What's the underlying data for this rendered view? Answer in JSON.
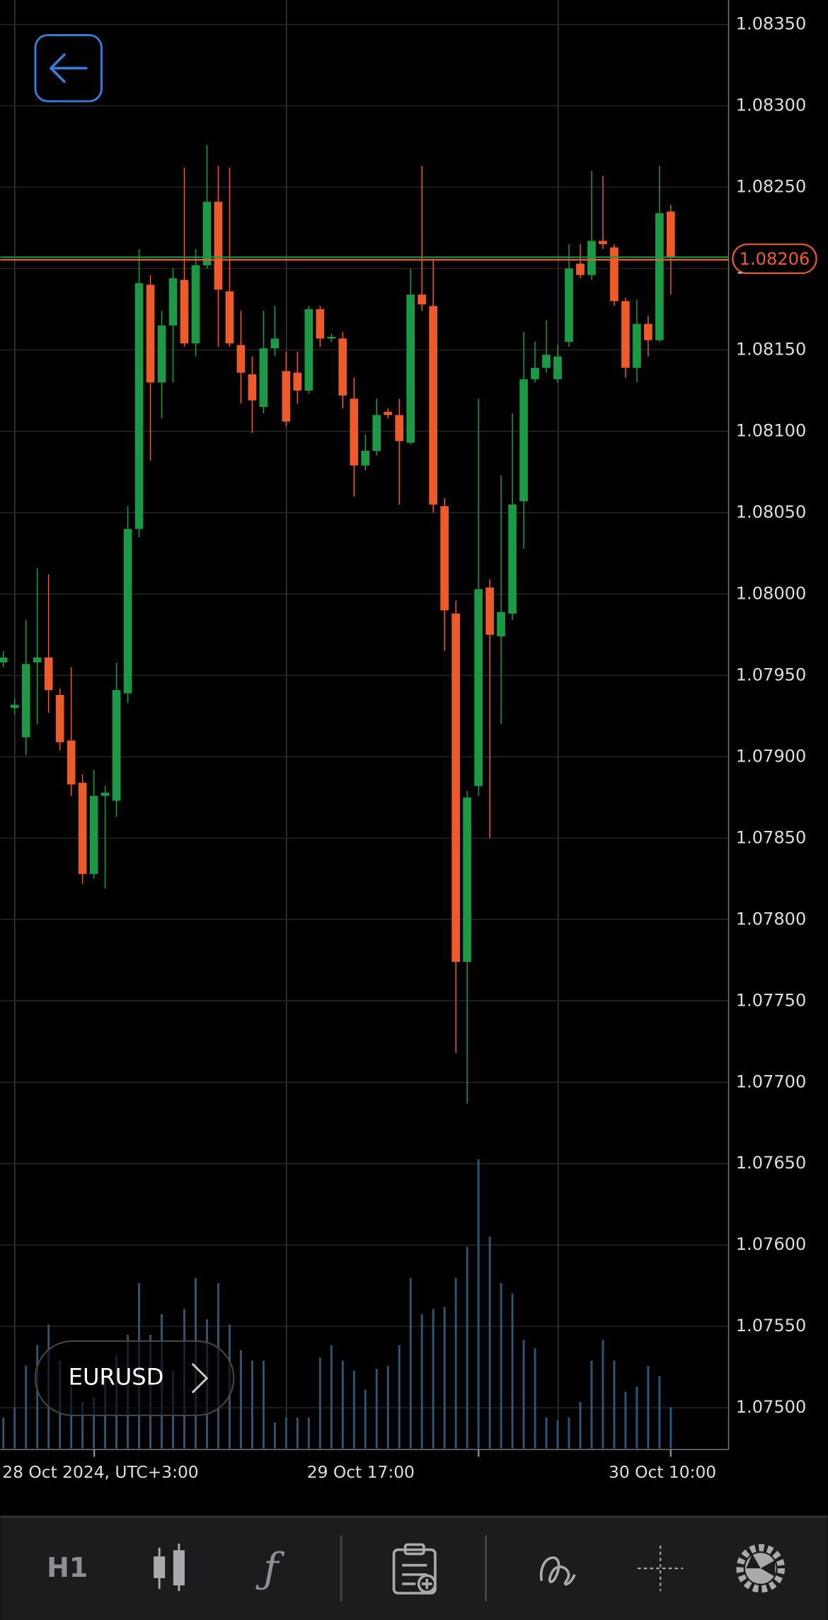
{
  "chart_data": {
    "type": "candlestick",
    "symbol": "EURUSD",
    "timeframe": "H1",
    "current_price": {
      "value": 1.08206,
      "label": "1.08206"
    },
    "x_labels": [
      "28 Oct 2024, UTC+3:00",
      "29 Oct 17:00",
      "30 Oct 10:00"
    ],
    "ylim": [
      1.07475,
      1.08365
    ],
    "yticks": [
      {
        "value": 1.0835,
        "label": "1.08350"
      },
      {
        "value": 1.083,
        "label": "1.08300"
      },
      {
        "value": 1.0825,
        "label": "1.08250"
      },
      {
        "value": 1.082,
        "label": "1.08200"
      },
      {
        "value": 1.0815,
        "label": "1.08150"
      },
      {
        "value": 1.081,
        "label": "1.08100"
      },
      {
        "value": 1.0805,
        "label": "1.08050"
      },
      {
        "value": 1.08,
        "label": "1.08000"
      },
      {
        "value": 1.0795,
        "label": "1.07950"
      },
      {
        "value": 1.079,
        "label": "1.07900"
      },
      {
        "value": 1.0785,
        "label": "1.07850"
      },
      {
        "value": 1.078,
        "label": "1.07800"
      },
      {
        "value": 1.0775,
        "label": "1.07750"
      },
      {
        "value": 1.077,
        "label": "1.07700"
      },
      {
        "value": 1.0765,
        "label": "1.07650"
      },
      {
        "value": 1.076,
        "label": "1.07600"
      },
      {
        "value": 1.0755,
        "label": "1.07550"
      },
      {
        "value": 1.075,
        "label": "1.07500"
      }
    ],
    "grid": true,
    "colors": {
      "up": "#1a9a45",
      "down": "#f05a28",
      "volume": "#2b5878"
    },
    "open": [
      1.07958,
      1.0793,
      1.07912,
      1.07958,
      1.07961,
      1.07938,
      1.0791,
      1.07884,
      1.07828,
      1.07876,
      1.07873,
      1.07939,
      1.0804,
      1.0819,
      1.0813,
      1.08165,
      1.08193,
      1.08154,
      1.08202,
      1.08241,
      1.08186,
      1.08153,
      1.08135,
      1.08115,
      1.08151,
      1.08137,
      1.08136,
      1.08125,
      1.08175,
      1.08157,
      1.08157,
      1.0812,
      1.08079,
      1.08088,
      1.08112,
      1.0811,
      1.08093,
      1.08184,
      1.08177,
      1.08054,
      1.07988,
      1.07774,
      1.07882,
      1.08004,
      1.07974,
      1.07988,
      1.08057,
      1.08132,
      1.08139,
      1.08132,
      1.08155,
      1.08203,
      1.08196,
      1.08217,
      1.08213,
      1.0818,
      1.08139,
      1.08166,
      1.08156,
      1.08235
    ],
    "high": [
      1.07965,
      1.07936,
      1.07984,
      1.08016,
      1.08012,
      1.07942,
      1.07955,
      1.07889,
      1.07892,
      1.07882,
      1.07958,
      1.08054,
      1.08212,
      1.08196,
      1.08174,
      1.082,
      1.08262,
      1.08212,
      1.08276,
      1.08263,
      1.08262,
      1.08174,
      1.08146,
      1.08174,
      1.08177,
      1.08149,
      1.08149,
      1.08177,
      1.08177,
      1.0816,
      1.08161,
      1.08133,
      1.08098,
      1.0812,
      1.08114,
      1.0812,
      1.082,
      1.08263,
      1.08206,
      1.08059,
      1.07996,
      1.07879,
      1.0812,
      1.08009,
      1.08073,
      1.08111,
      1.08161,
      1.08155,
      1.08168,
      1.08153,
      1.08215,
      1.08215,
      1.0826,
      1.08257,
      1.08215,
      1.08182,
      1.08181,
      1.08171,
      1.08263,
      1.08239
    ],
    "low": [
      1.07955,
      1.07926,
      1.07901,
      1.0792,
      1.07927,
      1.07904,
      1.07876,
      1.07822,
      1.07825,
      1.07819,
      1.07863,
      1.07933,
      1.08035,
      1.08082,
      1.08108,
      1.0813,
      1.08152,
      1.08146,
      1.082,
      1.08152,
      1.08152,
      1.08117,
      1.08099,
      1.08111,
      1.08146,
      1.08103,
      1.08117,
      1.08123,
      1.08152,
      1.08155,
      1.08114,
      1.0806,
      1.08076,
      1.08085,
      1.08108,
      1.08055,
      1.08092,
      1.08174,
      1.0805,
      1.07965,
      1.07718,
      1.07687,
      1.07876,
      1.0785,
      1.0792,
      1.07984,
      1.08028,
      1.0813,
      1.08136,
      1.0813,
      1.08152,
      1.08194,
      1.08193,
      1.08212,
      1.08177,
      1.08133,
      1.0813,
      1.08146,
      1.08155,
      1.08184
    ],
    "close": [
      1.07961,
      1.07932,
      1.07957,
      1.07961,
      1.07941,
      1.07909,
      1.07883,
      1.07828,
      1.07876,
      1.07878,
      1.07941,
      1.0804,
      1.08191,
      1.0813,
      1.08165,
      1.08194,
      1.08154,
      1.08202,
      1.08241,
      1.08187,
      1.08154,
      1.08136,
      1.08119,
      1.08151,
      1.08157,
      1.08106,
      1.08125,
      1.08175,
      1.08157,
      1.08158,
      1.08122,
      1.08079,
      1.08088,
      1.0811,
      1.0811,
      1.08094,
      1.08184,
      1.08178,
      1.08055,
      1.0799,
      1.07774,
      1.07875,
      1.08003,
      1.07975,
      1.07989,
      1.08055,
      1.08132,
      1.08139,
      1.08147,
      1.08146,
      1.082,
      1.08196,
      1.08217,
      1.08215,
      1.0818,
      1.08139,
      1.08166,
      1.08156,
      1.08234,
      1.08207
    ],
    "volume": [
      30,
      40,
      80,
      100,
      120,
      85,
      60,
      45,
      50,
      70,
      90,
      110,
      160,
      110,
      130,
      75,
      135,
      165,
      125,
      160,
      120,
      95,
      85,
      85,
      25,
      30,
      30,
      30,
      88,
      100,
      85,
      75,
      57,
      77,
      80,
      100,
      165,
      130,
      135,
      137,
      165,
      195,
      280,
      205,
      160,
      150,
      105,
      97,
      30,
      27,
      30,
      45,
      85,
      105,
      85,
      55,
      60,
      80,
      70,
      40
    ],
    "volume_ylim": [
      0,
      300
    ]
  }
}
